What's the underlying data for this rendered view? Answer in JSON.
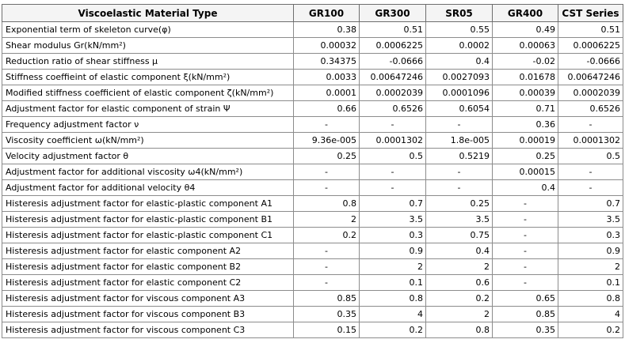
{
  "columns": [
    "Viscoelastic Material Type",
    "GR100",
    "GR300",
    "SR05",
    "GR400",
    "CST Series"
  ],
  "rows": [
    {
      "label": "Exponential term of skeleton curve(φ)",
      "values": [
        "0.38",
        "0.51",
        "0.55",
        "0.49",
        "0.51"
      ]
    },
    {
      "label": "Shear modulus Gr(kN/mm²)",
      "values": [
        "0.00032",
        "0.0006225",
        "0.0002",
        "0.00063",
        "0.0006225"
      ]
    },
    {
      "label": "Reduction ratio of shear stiffness μ",
      "values": [
        "0.34375",
        "-0.0666",
        "0.4",
        "-0.02",
        "-0.0666"
      ]
    },
    {
      "label": "Stiffness coeffieint of elastic component ξ(kN/mm²)",
      "values": [
        "0.0033",
        "0.00647246",
        "0.0027093",
        "0.01678",
        "0.00647246"
      ]
    },
    {
      "label": "Modified stiffness coefficient of elastic component ζ(kN/mm²)",
      "values": [
        "0.0001",
        "0.0002039",
        "0.0001096",
        "0.00039",
        "0.0002039"
      ]
    },
    {
      "label": "Adjustment factor for elastic component of strain Ψ",
      "values": [
        "0.66",
        "0.6526",
        "0.6054",
        "0.71",
        "0.6526"
      ]
    },
    {
      "label": "Frequency adjustment factor ν",
      "values": [
        "-",
        "-",
        "-",
        "0.36",
        "-"
      ]
    },
    {
      "label": "Viscosity coefficient ω(kN/mm²)",
      "values": [
        "9.36e-005",
        "0.0001302",
        "1.8e-005",
        "0.00019",
        "0.0001302"
      ]
    },
    {
      "label": "Velocity adjustment factor θ",
      "values": [
        "0.25",
        "0.5",
        "0.5219",
        "0.25",
        "0.5"
      ]
    },
    {
      "label": "Adjustment factor for additional viscosity ω4(kN/mm²)",
      "values": [
        "-",
        "-",
        "-",
        "0.00015",
        "-"
      ]
    },
    {
      "label": "Adjustment factor for additional velocity θ4",
      "values": [
        "-",
        "-",
        "-",
        "0.4",
        "-"
      ]
    },
    {
      "label": "Histeresis adjustment factor for elastic-plastic component A1",
      "values": [
        "0.8",
        "0.7",
        "0.25",
        "-",
        "0.7"
      ]
    },
    {
      "label": "Histeresis adjustment factor for elastic-plastic component B1",
      "values": [
        "2",
        "3.5",
        "3.5",
        "-",
        "3.5"
      ]
    },
    {
      "label": "Histeresis adjustment factor for elastic-plastic component C1",
      "values": [
        "0.2",
        "0.3",
        "0.75",
        "-",
        "0.3"
      ]
    },
    {
      "label": "Histeresis adjustment factor for elastic component A2",
      "values": [
        "-",
        "0.9",
        "0.4",
        "-",
        "0.9"
      ]
    },
    {
      "label": "Histeresis adjustment factor for elastic component B2",
      "values": [
        "-",
        "2",
        "2",
        "-",
        "2"
      ]
    },
    {
      "label": "Histeresis adjustment factor for elastic component C2",
      "values": [
        "-",
        "0.1",
        "0.6",
        "-",
        "0.1"
      ]
    },
    {
      "label": "Histeresis adjustment factor for viscous component A3",
      "values": [
        "0.85",
        "0.8",
        "0.2",
        "0.65",
        "0.8"
      ]
    },
    {
      "label": "Histeresis adjustment factor for viscous component B3",
      "values": [
        "0.35",
        "4",
        "2",
        "0.85",
        "4"
      ]
    },
    {
      "label": "Histeresis adjustment factor for viscous component C3",
      "values": [
        "0.15",
        "0.2",
        "0.8",
        "0.35",
        "0.2"
      ]
    }
  ]
}
